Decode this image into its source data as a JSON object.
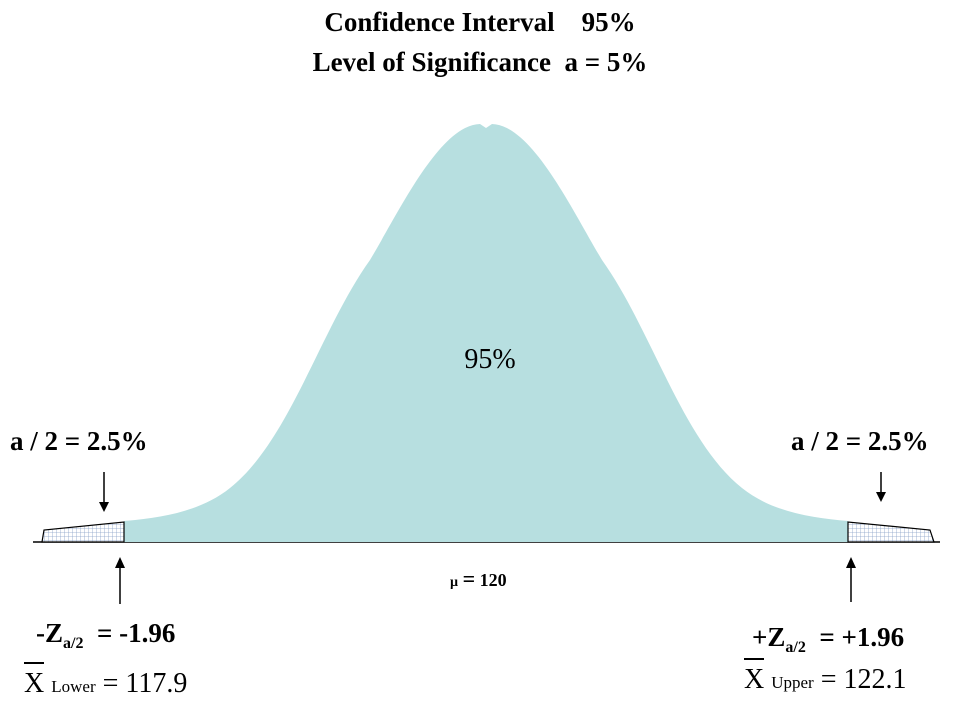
{
  "title": {
    "line1": "Confidence Interval    95%",
    "line2": "Level of Significance  a = 5%"
  },
  "center_label": "95%",
  "tail_left_label": "a / 2 = 2.5%",
  "tail_right_label": "a / 2 = 2.5%",
  "mu": {
    "symbol": "µ",
    "equals": "=",
    "value": "120"
  },
  "z_lower": {
    "prefix": "-Z",
    "sub": "a/2",
    "rest": "  = -1.96"
  },
  "z_upper": {
    "prefix": "+Z",
    "sub": "a/2",
    "rest": "  = +1.96"
  },
  "x_lower": {
    "x": "X",
    "sub": "Lower",
    "rest": "= 117.9"
  },
  "x_upper": {
    "x": "X",
    "sub": "Upper",
    "rest": "= 122.1"
  },
  "colors": {
    "curve_fill": "#b7dfe0",
    "tail_grid": "#8aa2c8",
    "line": "#000000"
  }
}
